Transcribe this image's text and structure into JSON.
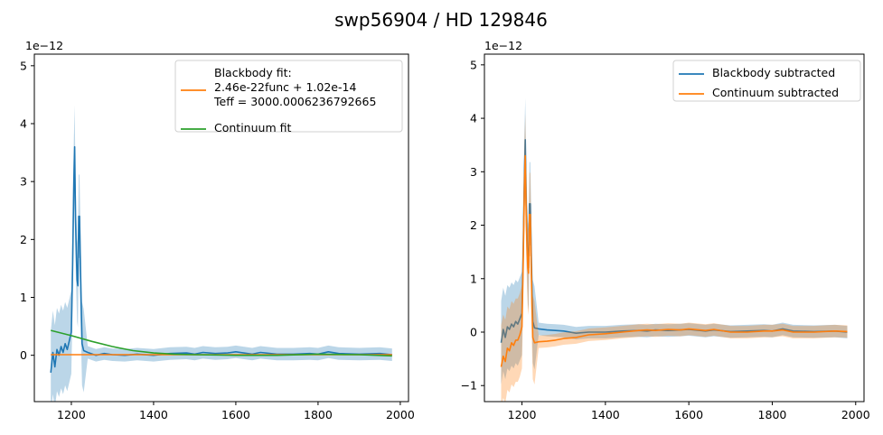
{
  "figure": {
    "title": "swp56904 / HD 129846"
  },
  "chart_data": [
    {
      "type": "line",
      "xlim": [
        1110,
        2020
      ],
      "ylim": [
        -8e-13,
        5.2e-12
      ],
      "x_ticks": [
        1200,
        1400,
        1600,
        1800,
        2000
      ],
      "x_tick_labels": [
        "1200",
        "1400",
        "1600",
        "1800",
        "2000"
      ],
      "y_ticks": [
        0,
        1e-12,
        2e-12,
        3e-12,
        4e-12,
        5e-12
      ],
      "y_tick_labels": [
        "0",
        "1",
        "2",
        "3",
        "4",
        "5"
      ],
      "offset_text": "1e−12",
      "grid": false,
      "legend_position": "upper right",
      "legend": [
        {
          "lines": [
            "Blackbody fit:",
            "2.46e-22func + 1.02e-14",
            "Teff = 3000.0006236792665"
          ],
          "color": "#ff7f0e"
        },
        {
          "lines": [
            "Continuum fit"
          ],
          "color": "#2ca02c"
        }
      ],
      "series": [
        {
          "color": "#1f77b4",
          "band": true,
          "x": [
            1150,
            1155,
            1160,
            1165,
            1170,
            1175,
            1180,
            1185,
            1190,
            1195,
            1200,
            1203,
            1206,
            1208,
            1210,
            1212,
            1214,
            1216,
            1218,
            1220,
            1222,
            1224,
            1226,
            1230,
            1240,
            1260,
            1280,
            1300,
            1330,
            1360,
            1400,
            1440,
            1480,
            1500,
            1520,
            1550,
            1580,
            1600,
            1640,
            1660,
            1700,
            1740,
            1780,
            1800,
            1825,
            1850,
            1900,
            1950,
            1980
          ],
          "y": [
            -3e-13,
            5e-14,
            -2e-13,
            1e-13,
            0.0,
            1.5e-13,
            5e-14,
            2e-13,
            1e-13,
            2.5e-13,
            4e-13,
            1.5e-12,
            3e-12,
            3.6e-12,
            2.4e-12,
            1.8e-12,
            1.3e-12,
            1.2e-12,
            2.4e-12,
            2.4e-12,
            1.5e-12,
            8e-13,
            2e-13,
            8e-14,
            5e-14,
            0.0,
            3e-14,
            1e-14,
            0.0,
            2e-14,
            0.0,
            3e-14,
            4e-14,
            2e-14,
            5e-14,
            3e-14,
            4e-14,
            6e-14,
            2e-14,
            5e-14,
            2e-14,
            2e-14,
            3e-14,
            2e-14,
            6e-14,
            3e-14,
            2e-14,
            3e-14,
            1e-14
          ]
        },
        {
          "color": "#ff7f0e",
          "band": false,
          "x": [
            1150,
            1980
          ],
          "y": [
            1e-14,
            1e-14
          ]
        },
        {
          "color": "#2ca02c",
          "band": false,
          "x": [
            1150,
            1200,
            1250,
            1300,
            1350,
            1400,
            1450,
            1500,
            1600,
            1700,
            1800,
            1900,
            1980
          ],
          "y": [
            4.3e-13,
            3.4e-13,
            2.4e-13,
            1.5e-13,
            8e-14,
            4e-14,
            2e-14,
            1e-14,
            0.0,
            0.0,
            2e-14,
            1e-14,
            -1e-14
          ]
        }
      ]
    },
    {
      "type": "line",
      "xlim": [
        1110,
        2020
      ],
      "ylim": [
        -1.3e-12,
        5.2e-12
      ],
      "x_ticks": [
        1200,
        1400,
        1600,
        1800,
        2000
      ],
      "x_tick_labels": [
        "1200",
        "1400",
        "1600",
        "1800",
        "2000"
      ],
      "y_ticks": [
        -1e-12,
        0,
        1e-12,
        2e-12,
        3e-12,
        4e-12,
        5e-12
      ],
      "y_tick_labels": [
        "−1",
        "0",
        "1",
        "2",
        "3",
        "4",
        "5"
      ],
      "offset_text": "1e−12",
      "grid": false,
      "legend_position": "upper right",
      "legend": [
        {
          "lines": [
            "Blackbody subtracted"
          ],
          "color": "#1f77b4"
        },
        {
          "lines": [
            "Continuum subtracted"
          ],
          "color": "#ff7f0e"
        }
      ],
      "series": [
        {
          "color": "#1f77b4",
          "band": true,
          "x": [
            1150,
            1155,
            1160,
            1165,
            1170,
            1175,
            1180,
            1185,
            1190,
            1195,
            1200,
            1203,
            1206,
            1208,
            1210,
            1212,
            1214,
            1216,
            1218,
            1220,
            1222,
            1224,
            1226,
            1230,
            1240,
            1260,
            1280,
            1300,
            1330,
            1360,
            1400,
            1440,
            1480,
            1500,
            1520,
            1550,
            1580,
            1600,
            1640,
            1660,
            1700,
            1740,
            1780,
            1800,
            1825,
            1850,
            1900,
            1950,
            1980
          ],
          "y": [
            -2e-13,
            5e-14,
            -1e-13,
            1e-13,
            5e-14,
            1.5e-13,
            1e-13,
            2e-13,
            1.5e-13,
            2.5e-13,
            3.5e-13,
            1.5e-12,
            3e-12,
            3.6e-12,
            2.4e-12,
            1.8e-12,
            1.3e-12,
            1.2e-12,
            2.4e-12,
            2.4e-12,
            1.5e-12,
            8e-13,
            2e-13,
            8e-14,
            6e-14,
            4e-14,
            3e-14,
            2e-14,
            -2e-14,
            0.0,
            0.0,
            2e-14,
            3e-14,
            2e-14,
            4e-14,
            3e-14,
            4e-14,
            5e-14,
            2e-14,
            4e-14,
            1e-14,
            2e-14,
            3e-14,
            2e-14,
            6e-14,
            2e-14,
            1e-14,
            2e-14,
            0.0
          ]
        },
        {
          "color": "#ff7f0e",
          "band": true,
          "x": [
            1150,
            1155,
            1160,
            1165,
            1170,
            1175,
            1180,
            1185,
            1190,
            1195,
            1200,
            1203,
            1206,
            1208,
            1210,
            1212,
            1214,
            1216,
            1218,
            1220,
            1222,
            1224,
            1226,
            1230,
            1240,
            1260,
            1280,
            1300,
            1330,
            1360,
            1400,
            1440,
            1480,
            1500,
            1520,
            1550,
            1580,
            1600,
            1640,
            1660,
            1700,
            1740,
            1780,
            1800,
            1825,
            1850,
            1900,
            1950,
            1980
          ],
          "y": [
            -6.5e-13,
            -4.5e-13,
            -5.5e-13,
            -3e-13,
            -3.5e-13,
            -2e-13,
            -2.5e-13,
            -1.5e-13,
            -1.5e-13,
            -5e-14,
            1e-13,
            1.3e-12,
            2.8e-12,
            3.3e-12,
            2.2e-12,
            1.6e-12,
            1.2e-12,
            1.1e-12,
            2.2e-12,
            2.2e-12,
            1.3e-12,
            5e-13,
            -1e-13,
            -2e-13,
            -1.8e-13,
            -1.7e-13,
            -1.5e-13,
            -1.2e-13,
            -1e-13,
            -5e-14,
            -3e-14,
            0.0,
            3e-14,
            4e-14,
            3e-14,
            5e-14,
            4e-14,
            6e-14,
            3e-14,
            5e-14,
            0.0,
            0.0,
            2e-14,
            2e-14,
            4e-14,
            0.0,
            0.0,
            2e-14,
            1e-14
          ]
        }
      ]
    }
  ]
}
